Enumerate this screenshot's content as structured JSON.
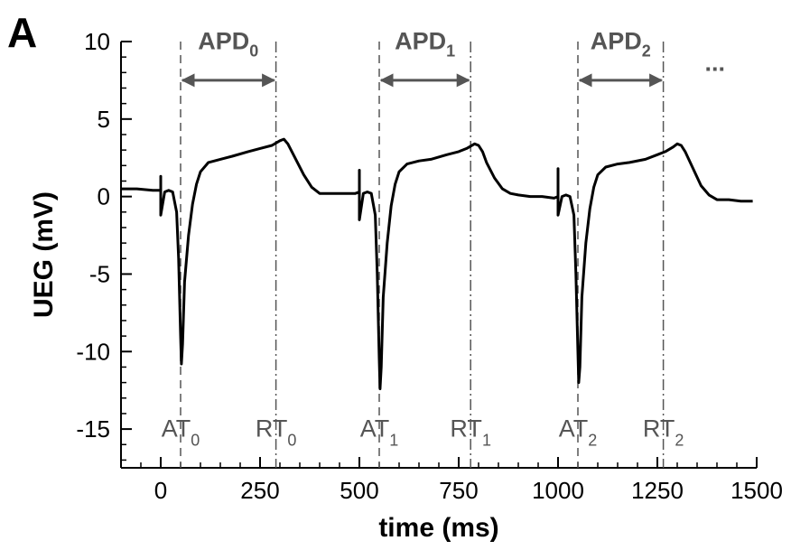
{
  "panel_label": "A",
  "colors": {
    "trace": "#000000",
    "annotation": "#555555",
    "axis": "#000000"
  },
  "chart_data": {
    "type": "line",
    "title": "",
    "xlabel": "time (ms)",
    "ylabel": "UEG (mV)",
    "xlim": [
      -100,
      1500
    ],
    "ylim": [
      -17.5,
      10
    ],
    "xticks": [
      0,
      250,
      500,
      750,
      1000,
      1250,
      1500
    ],
    "xtick_labels": [
      "0",
      "250",
      "500",
      "750",
      "1000",
      "1250",
      "1500"
    ],
    "yticks": [
      -15,
      -10,
      -5,
      0,
      5,
      10
    ],
    "ytick_labels": [
      "-15",
      "-10",
      "-5",
      "0",
      "5",
      "10"
    ],
    "grid": false,
    "series": [
      {
        "x": [
          -100,
          -60,
          -20,
          0,
          0,
          0,
          10,
          20,
          30,
          40,
          45,
          50,
          52,
          55,
          60,
          70,
          80,
          90,
          100,
          120,
          150,
          180,
          220,
          250,
          280,
          300,
          310,
          320,
          340,
          360,
          380,
          400,
          430,
          460,
          490,
          500,
          500,
          500,
          510,
          520,
          530,
          540,
          545,
          550,
          552,
          555,
          560,
          570,
          580,
          590,
          600,
          620,
          650,
          680,
          720,
          750,
          770,
          790,
          800,
          810,
          820,
          840,
          860,
          880,
          900,
          930,
          960,
          990,
          1000,
          1000,
          1000,
          1010,
          1020,
          1030,
          1040,
          1045,
          1050,
          1052,
          1055,
          1060,
          1070,
          1080,
          1090,
          1100,
          1120,
          1150,
          1180,
          1220,
          1250,
          1270,
          1290,
          1300,
          1310,
          1320,
          1340,
          1360,
          1380,
          1400,
          1430,
          1460,
          1490
        ],
        "y": [
          0.5,
          0.5,
          0.4,
          0.4,
          1.3,
          -1.2,
          0.3,
          0.4,
          0.3,
          -1.0,
          -4.0,
          -9.0,
          -10.8,
          -9.5,
          -5.5,
          -2.5,
          -0.5,
          0.8,
          1.6,
          2.2,
          2.4,
          2.6,
          2.9,
          3.1,
          3.3,
          3.6,
          3.7,
          3.4,
          2.4,
          1.4,
          0.6,
          0.2,
          0.2,
          0.2,
          0.2,
          0.3,
          1.7,
          -1.5,
          0.2,
          0.3,
          0.2,
          -1.2,
          -5.0,
          -10.5,
          -12.4,
          -11.0,
          -6.5,
          -3.0,
          -0.6,
          0.8,
          1.6,
          2.1,
          2.3,
          2.4,
          2.7,
          2.9,
          3.1,
          3.4,
          3.3,
          2.9,
          2.2,
          1.2,
          0.5,
          0.2,
          0.1,
          0.0,
          0.0,
          -0.1,
          0.0,
          1.8,
          -1.2,
          0.0,
          0.1,
          0.0,
          -1.2,
          -5.0,
          -10.0,
          -12.0,
          -11.0,
          -6.5,
          -3.0,
          -0.8,
          0.6,
          1.4,
          1.9,
          2.1,
          2.2,
          2.4,
          2.7,
          2.9,
          3.2,
          3.4,
          3.3,
          2.9,
          1.8,
          0.7,
          0.1,
          -0.2,
          -0.2,
          -0.3,
          -0.3
        ]
      }
    ],
    "annotations": {
      "activation_times": [
        {
          "x": 50,
          "label": "AT",
          "sub": "0"
        },
        {
          "x": 550,
          "label": "AT",
          "sub": "1"
        },
        {
          "x": 1050,
          "label": "AT",
          "sub": "2"
        }
      ],
      "recovery_times": [
        {
          "x": 290,
          "label": "RT",
          "sub": "0"
        },
        {
          "x": 780,
          "label": "RT",
          "sub": "1"
        },
        {
          "x": 1265,
          "label": "RT",
          "sub": "2"
        }
      ],
      "apd_arrows": [
        {
          "x_from": 50,
          "x_to": 290,
          "y": 7.5,
          "label": "APD",
          "sub": "0"
        },
        {
          "x_from": 550,
          "x_to": 780,
          "y": 7.5,
          "label": "APD",
          "sub": "1"
        },
        {
          "x_from": 1050,
          "x_to": 1265,
          "y": 7.5,
          "label": "APD",
          "sub": "2"
        }
      ],
      "continuation": "..."
    }
  }
}
